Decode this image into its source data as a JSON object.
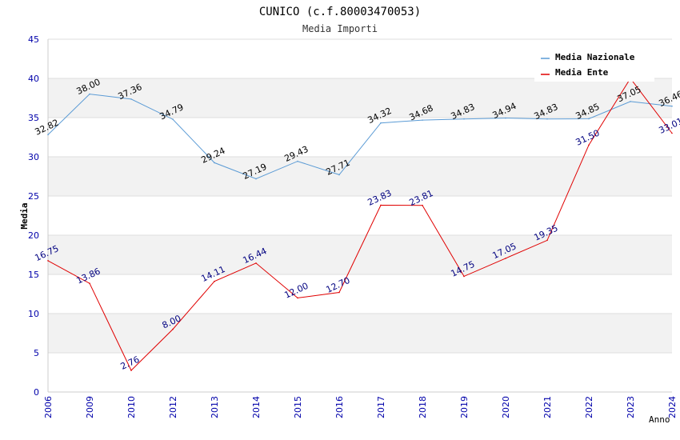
{
  "chart_data": {
    "type": "line",
    "title": "CUNICO (c.f.80003470053)",
    "subtitle": "Media Importi",
    "xlabel": "Anno",
    "ylabel": "Media",
    "ylim": [
      0,
      45
    ],
    "yticks": [
      0,
      5,
      10,
      15,
      20,
      25,
      30,
      35,
      40,
      45
    ],
    "grid": true,
    "legend_position": "top-right",
    "categories": [
      "2006",
      "2009",
      "2010",
      "2012",
      "2013",
      "2014",
      "2015",
      "2016",
      "2017",
      "2018",
      "2019",
      "2020",
      "2021",
      "2022",
      "2023",
      "2024"
    ],
    "series": [
      {
        "name": "Media Nazionale",
        "color": "#5b9bd5",
        "label_color": "#000000",
        "values": [
          32.82,
          38.0,
          37.36,
          34.79,
          29.24,
          27.19,
          29.43,
          27.71,
          34.32,
          34.68,
          34.83,
          34.94,
          34.83,
          34.85,
          37.05,
          36.46
        ],
        "labels": [
          "32.82",
          "38.00",
          "37.36",
          "34.79",
          "29.24",
          "27.19",
          "29.43",
          "27.71",
          "34.32",
          "34.68",
          "34.83",
          "34.94",
          "34.83",
          "34.85",
          "37.05",
          "36.46"
        ]
      },
      {
        "name": "Media Ente",
        "color": "#e00000",
        "label_color": "#000080",
        "values": [
          16.75,
          13.86,
          2.76,
          8.0,
          14.11,
          16.44,
          12.0,
          12.7,
          23.83,
          23.81,
          14.75,
          17.05,
          19.35,
          31.5,
          40.0,
          33.01
        ],
        "labels": [
          "16.75",
          "13.86",
          "2.76",
          "8.00",
          "14.11",
          "16.44",
          "12.00",
          "12.70",
          "23.83",
          "23.81",
          "14.75",
          "17.05",
          "19.35",
          "31.50",
          "",
          "33.01"
        ]
      }
    ]
  }
}
